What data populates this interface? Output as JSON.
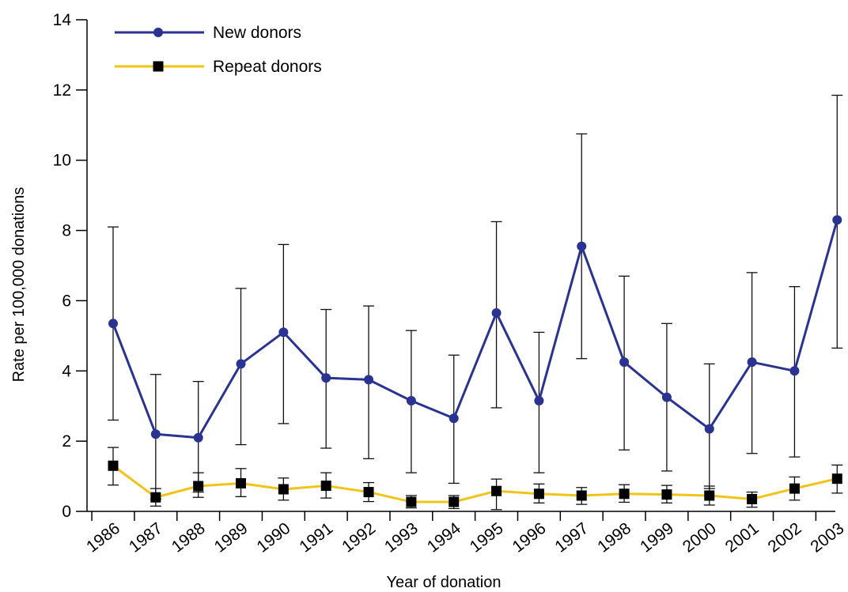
{
  "chart_data": {
    "type": "line",
    "xlabel": "Year of donation",
    "ylabel": "Rate per 100,000 donations",
    "ylim": [
      0,
      14
    ],
    "yticks": [
      0,
      2,
      4,
      6,
      8,
      10,
      12,
      14
    ],
    "categories": [
      "1986",
      "1987",
      "1988",
      "1989",
      "1990",
      "1991",
      "1992",
      "1993",
      "1994",
      "1995",
      "1996",
      "1997",
      "1998",
      "1999",
      "2000",
      "2001",
      "2002",
      "2003"
    ],
    "legend_position": "top-left",
    "grid": false,
    "series": [
      {
        "name": "New donors",
        "color": "#2a3391",
        "marker": "circle",
        "values": [
          5.35,
          2.2,
          2.1,
          4.2,
          5.1,
          3.8,
          3.75,
          3.15,
          2.65,
          5.65,
          3.15,
          7.55,
          4.25,
          3.25,
          2.35,
          4.25,
          4.0,
          8.3
        ],
        "error_low": [
          2.6,
          0.35,
          0.55,
          1.9,
          2.5,
          1.8,
          1.5,
          1.1,
          0.8,
          2.95,
          1.1,
          4.35,
          1.75,
          1.15,
          0.65,
          1.65,
          1.55,
          4.65
        ],
        "error_high": [
          8.1,
          3.9,
          3.7,
          6.35,
          7.6,
          5.75,
          5.85,
          5.15,
          4.45,
          8.25,
          5.1,
          10.75,
          6.7,
          5.35,
          4.2,
          6.8,
          6.4,
          11.85
        ]
      },
      {
        "name": "Repeat donors",
        "color": "#f0c419",
        "marker": "square",
        "values": [
          1.3,
          0.4,
          0.72,
          0.8,
          0.63,
          0.73,
          0.55,
          0.27,
          0.27,
          0.58,
          0.5,
          0.45,
          0.5,
          0.48,
          0.45,
          0.35,
          0.65,
          0.93
        ],
        "error_low": [
          0.75,
          0.15,
          0.4,
          0.42,
          0.32,
          0.38,
          0.28,
          0.1,
          0.08,
          0.05,
          0.24,
          0.2,
          0.26,
          0.24,
          0.18,
          0.12,
          0.32,
          0.52
        ],
        "error_high": [
          1.82,
          0.65,
          1.1,
          1.22,
          0.95,
          1.1,
          0.82,
          0.45,
          0.45,
          0.92,
          0.78,
          0.68,
          0.76,
          0.74,
          0.72,
          0.55,
          0.98,
          1.32
        ]
      }
    ]
  }
}
